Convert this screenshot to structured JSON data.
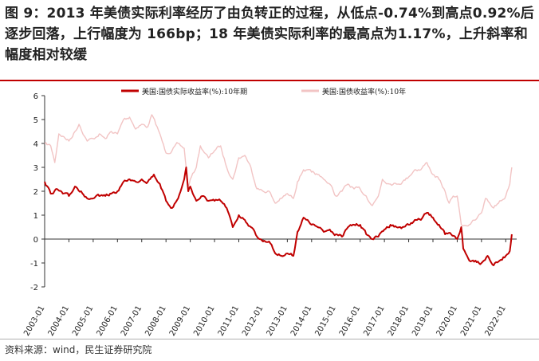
{
  "figure": {
    "title": "图 9：2013 年美债实际利率经历了由负转正的过程，从低点-0.74%到高点0.92%后逐步回落，上行幅度为 166bp；18 年美债实际利率的最高点为1.17%，上升斜率和幅度相对较缓",
    "source": "资料来源：wind，民生证券研究院"
  },
  "colors": {
    "real_rate": "#c00000",
    "nominal_rate": "#f2c4c4",
    "axis": "#333333",
    "accent": "#c00000"
  },
  "chart_data": {
    "type": "line",
    "title": "",
    "xlabel": "",
    "ylabel": "",
    "ylim": [
      -2,
      6
    ],
    "yticks": [
      "-2",
      "-1",
      "0",
      "1",
      "2",
      "3",
      "4",
      "5",
      "6"
    ],
    "xticks": [
      "2003-01",
      "2004-01",
      "2005-01",
      "2006-01",
      "2007-01",
      "2008-01",
      "2009-01",
      "2010-01",
      "2011-01",
      "2012-01",
      "2013-01",
      "2014-01",
      "2015-01",
      "2016-01",
      "2017-01",
      "2018-01",
      "2019-01",
      "2020-01",
      "2021-01",
      "2022-01"
    ],
    "grid": false,
    "legend_position": "top",
    "series": [
      {
        "name": "美国:国债实际收益率(%):10年期",
        "points": [
          [
            "2003-01",
            2.4
          ],
          [
            "2003-04",
            1.9
          ],
          [
            "2003-07",
            2.1
          ],
          [
            "2003-10",
            1.9
          ],
          [
            "2004-01",
            1.8
          ],
          [
            "2004-04",
            2.2
          ],
          [
            "2004-07",
            2.0
          ],
          [
            "2004-10",
            1.7
          ],
          [
            "2005-01",
            1.7
          ],
          [
            "2005-04",
            1.8
          ],
          [
            "2005-07",
            1.8
          ],
          [
            "2005-10",
            1.9
          ],
          [
            "2006-01",
            2.0
          ],
          [
            "2006-04",
            2.4
          ],
          [
            "2006-07",
            2.5
          ],
          [
            "2006-10",
            2.4
          ],
          [
            "2007-01",
            2.5
          ],
          [
            "2007-04",
            2.4
          ],
          [
            "2007-07",
            2.7
          ],
          [
            "2007-10",
            2.3
          ],
          [
            "2008-01",
            1.6
          ],
          [
            "2008-04",
            1.3
          ],
          [
            "2008-07",
            1.7
          ],
          [
            "2008-10",
            2.5
          ],
          [
            "2008-11",
            3.0
          ],
          [
            "2008-12",
            2.0
          ],
          [
            "2009-01",
            2.2
          ],
          [
            "2009-04",
            1.6
          ],
          [
            "2009-07",
            1.8
          ],
          [
            "2009-10",
            1.6
          ],
          [
            "2010-01",
            1.6
          ],
          [
            "2010-04",
            1.6
          ],
          [
            "2010-07",
            1.3
          ],
          [
            "2010-10",
            0.5
          ],
          [
            "2011-01",
            1.0
          ],
          [
            "2011-04",
            0.8
          ],
          [
            "2011-07",
            0.5
          ],
          [
            "2011-10",
            0.1
          ],
          [
            "2012-01",
            -0.1
          ],
          [
            "2012-04",
            -0.1
          ],
          [
            "2012-07",
            -0.6
          ],
          [
            "2012-10",
            -0.7
          ],
          [
            "2013-01",
            -0.6
          ],
          [
            "2013-04",
            -0.7
          ],
          [
            "2013-06",
            0.3
          ],
          [
            "2013-09",
            0.9
          ],
          [
            "2014-01",
            0.6
          ],
          [
            "2014-04",
            0.5
          ],
          [
            "2014-07",
            0.3
          ],
          [
            "2014-10",
            0.4
          ],
          [
            "2015-01",
            0.2
          ],
          [
            "2015-04",
            0.1
          ],
          [
            "2015-07",
            0.5
          ],
          [
            "2015-10",
            0.6
          ],
          [
            "2016-01",
            0.6
          ],
          [
            "2016-04",
            0.2
          ],
          [
            "2016-07",
            0.0
          ],
          [
            "2016-10",
            0.1
          ],
          [
            "2017-01",
            0.4
          ],
          [
            "2017-04",
            0.6
          ],
          [
            "2017-07",
            0.5
          ],
          [
            "2017-10",
            0.5
          ],
          [
            "2018-01",
            0.6
          ],
          [
            "2018-04",
            0.8
          ],
          [
            "2018-07",
            0.8
          ],
          [
            "2018-10",
            1.1
          ],
          [
            "2019-01",
            0.9
          ],
          [
            "2019-04",
            0.6
          ],
          [
            "2019-07",
            0.2
          ],
          [
            "2019-10",
            0.2
          ],
          [
            "2020-01",
            0.0
          ],
          [
            "2020-03",
            0.5
          ],
          [
            "2020-04",
            -0.4
          ],
          [
            "2020-07",
            -0.9
          ],
          [
            "2020-10",
            -0.9
          ],
          [
            "2021-01",
            -1.0
          ],
          [
            "2021-04",
            -0.7
          ],
          [
            "2021-07",
            -1.1
          ],
          [
            "2021-10",
            -0.9
          ],
          [
            "2022-01",
            -0.7
          ],
          [
            "2022-03",
            -0.5
          ],
          [
            "2022-04",
            0.2
          ]
        ]
      },
      {
        "name": "美国:国债收益率(%):10年",
        "points": [
          [
            "2003-01",
            4.0
          ],
          [
            "2003-04",
            3.9
          ],
          [
            "2003-06",
            3.2
          ],
          [
            "2003-08",
            4.4
          ],
          [
            "2003-10",
            4.3
          ],
          [
            "2004-01",
            4.1
          ],
          [
            "2004-04",
            4.5
          ],
          [
            "2004-06",
            4.8
          ],
          [
            "2004-10",
            4.1
          ],
          [
            "2005-01",
            4.2
          ],
          [
            "2005-04",
            4.4
          ],
          [
            "2005-07",
            4.2
          ],
          [
            "2005-10",
            4.5
          ],
          [
            "2006-01",
            4.4
          ],
          [
            "2006-04",
            5.0
          ],
          [
            "2006-07",
            5.1
          ],
          [
            "2006-10",
            4.6
          ],
          [
            "2007-01",
            4.8
          ],
          [
            "2007-04",
            4.7
          ],
          [
            "2007-06",
            5.2
          ],
          [
            "2007-10",
            4.4
          ],
          [
            "2008-01",
            3.6
          ],
          [
            "2008-04",
            3.7
          ],
          [
            "2008-07",
            4.0
          ],
          [
            "2008-10",
            3.8
          ],
          [
            "2008-12",
            2.2
          ],
          [
            "2009-01",
            2.5
          ],
          [
            "2009-04",
            3.0
          ],
          [
            "2009-06",
            3.9
          ],
          [
            "2009-10",
            3.4
          ],
          [
            "2010-01",
            3.7
          ],
          [
            "2010-04",
            3.9
          ],
          [
            "2010-07",
            3.0
          ],
          [
            "2010-10",
            2.5
          ],
          [
            "2011-01",
            3.4
          ],
          [
            "2011-04",
            3.5
          ],
          [
            "2011-07",
            3.0
          ],
          [
            "2011-10",
            2.1
          ],
          [
            "2012-01",
            2.0
          ],
          [
            "2012-04",
            2.0
          ],
          [
            "2012-07",
            1.5
          ],
          [
            "2012-10",
            1.7
          ],
          [
            "2013-01",
            1.9
          ],
          [
            "2013-04",
            1.7
          ],
          [
            "2013-06",
            2.4
          ],
          [
            "2013-09",
            2.9
          ],
          [
            "2014-01",
            2.8
          ],
          [
            "2014-04",
            2.7
          ],
          [
            "2014-07",
            2.5
          ],
          [
            "2014-10",
            2.3
          ],
          [
            "2015-01",
            1.8
          ],
          [
            "2015-04",
            2.0
          ],
          [
            "2015-07",
            2.3
          ],
          [
            "2015-10",
            2.1
          ],
          [
            "2016-01",
            2.1
          ],
          [
            "2016-04",
            1.8
          ],
          [
            "2016-07",
            1.4
          ],
          [
            "2016-10",
            1.8
          ],
          [
            "2016-12",
            2.5
          ],
          [
            "2017-04",
            2.3
          ],
          [
            "2017-07",
            2.3
          ],
          [
            "2017-10",
            2.4
          ],
          [
            "2018-01",
            2.6
          ],
          [
            "2018-04",
            2.9
          ],
          [
            "2018-07",
            2.9
          ],
          [
            "2018-10",
            3.2
          ],
          [
            "2019-01",
            2.7
          ],
          [
            "2019-04",
            2.5
          ],
          [
            "2019-07",
            2.0
          ],
          [
            "2019-09",
            1.5
          ],
          [
            "2019-11",
            1.8
          ],
          [
            "2020-01",
            1.8
          ],
          [
            "2020-03",
            0.6
          ],
          [
            "2020-07",
            0.6
          ],
          [
            "2020-10",
            0.8
          ],
          [
            "2021-01",
            1.1
          ],
          [
            "2021-03",
            1.7
          ],
          [
            "2021-07",
            1.3
          ],
          [
            "2021-10",
            1.6
          ],
          [
            "2022-01",
            1.8
          ],
          [
            "2022-03",
            2.3
          ],
          [
            "2022-04",
            3.0
          ]
        ]
      }
    ]
  }
}
